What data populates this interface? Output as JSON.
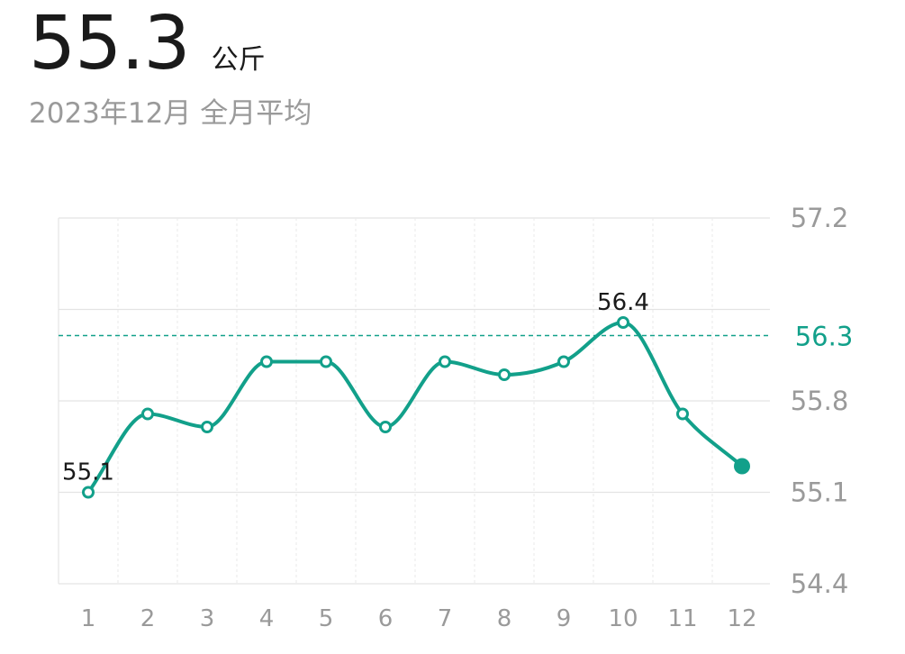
{
  "header": {
    "value": "55.3",
    "unit": "公斤",
    "subtitle": "2023年12月  全月平均"
  },
  "colors": {
    "accent": "#12a08a",
    "grid": "#e4e4e4",
    "text_muted": "#9a9a9a",
    "text_dark": "#1a1a1a"
  },
  "chart_data": {
    "type": "line",
    "x": [
      1,
      2,
      3,
      4,
      5,
      6,
      7,
      8,
      9,
      10,
      11,
      12
    ],
    "series": [
      {
        "values": [
          55.1,
          55.7,
          55.6,
          56.1,
          56.1,
          55.6,
          56.1,
          56.0,
          56.1,
          56.4,
          55.7,
          55.3
        ]
      }
    ],
    "ylim": [
      54.4,
      57.2
    ],
    "y_ticks": [
      "57.2",
      "55.8",
      "55.1",
      "54.4"
    ],
    "x_ticks": [
      "1",
      "2",
      "3",
      "4",
      "5",
      "6",
      "7",
      "8",
      "9",
      "10",
      "11",
      "12"
    ],
    "reference_line": {
      "value": 56.3,
      "label": "56.3"
    },
    "annotations": [
      {
        "x": 1,
        "label": "55.1"
      },
      {
        "x": 10,
        "label": "56.4"
      }
    ],
    "highlight_x": 12,
    "grid": true,
    "curve": "smooth"
  }
}
